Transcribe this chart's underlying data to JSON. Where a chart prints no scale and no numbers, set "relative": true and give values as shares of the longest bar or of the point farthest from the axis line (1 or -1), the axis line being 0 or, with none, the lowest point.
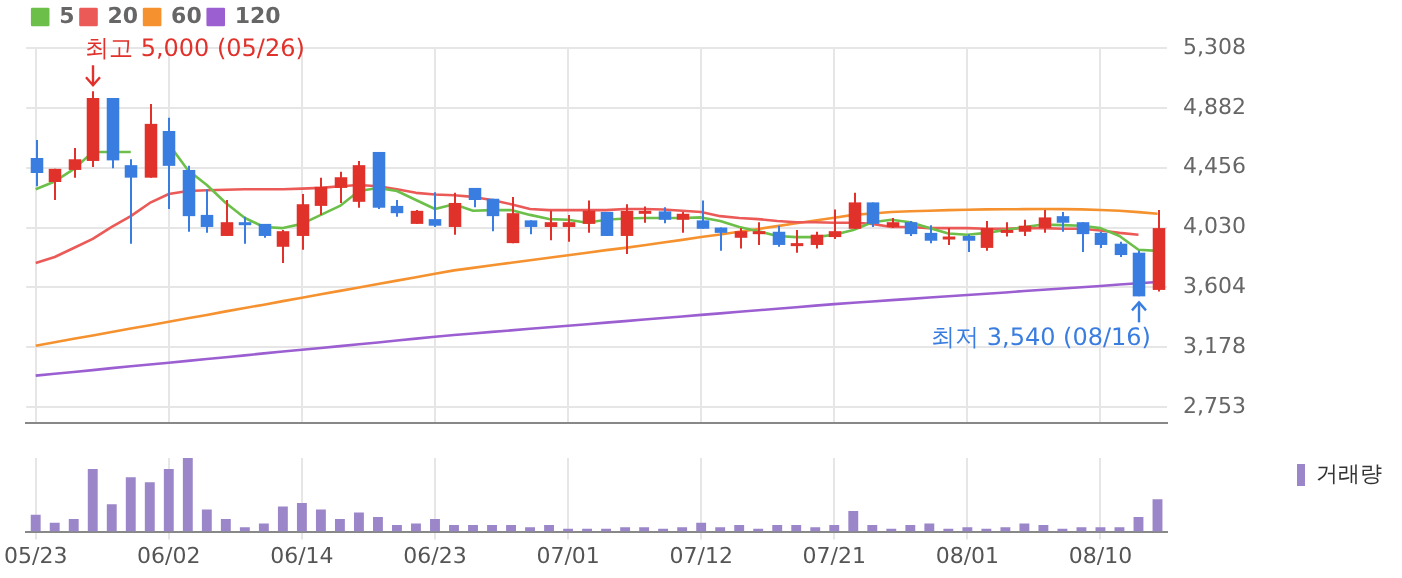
{
  "chart_data": [
    {
      "type": "candlestick",
      "categories": [
        null,
        null,
        null,
        null,
        null,
        null,
        null,
        null,
        null,
        null,
        null,
        null,
        null,
        null,
        null,
        null,
        null,
        null,
        null,
        null,
        null,
        null,
        null,
        null,
        null,
        null,
        null,
        null,
        null,
        null,
        null,
        null,
        null,
        null,
        null,
        null,
        null,
        null,
        null,
        null,
        null,
        null,
        null,
        null,
        null,
        null,
        null,
        null,
        null,
        null,
        null,
        null,
        null,
        null,
        null,
        null,
        null,
        null,
        null,
        null
      ],
      "ohlc": [
        [
          4525,
          4653,
          4324,
          4418
        ],
        [
          4354,
          4448,
          4226,
          4448
        ],
        [
          4440,
          4597,
          4385,
          4516
        ],
        [
          4504,
          5000,
          4461,
          4952
        ],
        [
          4952,
          4952,
          4452,
          4508
        ],
        [
          4474,
          4516,
          3915,
          4385
        ],
        [
          4385,
          4909,
          4385,
          4768
        ],
        [
          4717,
          4811,
          4162,
          4469
        ],
        [
          4440,
          4469,
          4000,
          4111
        ],
        [
          4120,
          4303,
          3992,
          4034
        ],
        [
          3970,
          4226,
          3970,
          4068
        ],
        [
          4068,
          4107,
          3915,
          4047
        ],
        [
          4056,
          4056,
          3957,
          3970
        ],
        [
          3893,
          4013,
          3778,
          4004
        ],
        [
          3970,
          4269,
          3872,
          4196
        ],
        [
          4184,
          4385,
          4120,
          4320
        ],
        [
          4312,
          4427,
          4205,
          4388
        ],
        [
          4213,
          4504,
          4171,
          4474
        ],
        [
          4568,
          4568,
          4162,
          4171
        ],
        [
          4184,
          4226,
          4107,
          4132
        ],
        [
          4056,
          4154,
          4056,
          4149
        ],
        [
          4090,
          4282,
          4034,
          4043
        ],
        [
          4034,
          4277,
          3979,
          4205
        ],
        [
          4312,
          4312,
          4175,
          4226
        ],
        [
          4235,
          4235,
          4004,
          4111
        ],
        [
          3919,
          4248,
          3919,
          4132
        ],
        [
          4081,
          4081,
          3983,
          4034
        ],
        [
          4034,
          4149,
          3940,
          4068
        ],
        [
          4034,
          4120,
          3928,
          4068
        ],
        [
          4056,
          4222,
          3992,
          4149
        ],
        [
          4141,
          4141,
          3970,
          3970
        ],
        [
          3970,
          4196,
          3842,
          4149
        ],
        [
          4132,
          4179,
          4064,
          4149
        ],
        [
          4145,
          4175,
          4060,
          4085
        ],
        [
          4085,
          4141,
          3992,
          4128
        ],
        [
          4081,
          4222,
          4021,
          4021
        ],
        [
          4030,
          4030,
          3864,
          3992
        ],
        [
          3957,
          4026,
          3881,
          4004
        ],
        [
          3996,
          4068,
          3906,
          4004
        ],
        [
          4000,
          4043,
          3893,
          3906
        ],
        [
          3915,
          4013,
          3851,
          3919
        ],
        [
          3906,
          4000,
          3881,
          3979
        ],
        [
          3962,
          4158,
          3949,
          4004
        ],
        [
          4021,
          4277,
          4021,
          4209
        ],
        [
          4209,
          4209,
          4034,
          4056
        ],
        [
          4034,
          4098,
          4026,
          4068
        ],
        [
          4068,
          4077,
          3970,
          3983
        ],
        [
          3992,
          4047,
          3919,
          3936
        ],
        [
          3953,
          4026,
          3906,
          3966
        ],
        [
          3970,
          3983,
          3855,
          3936
        ],
        [
          3885,
          4077,
          3864,
          4026
        ],
        [
          4004,
          4068,
          3966,
          4013
        ],
        [
          4000,
          4085,
          3970,
          4043
        ],
        [
          4026,
          4154,
          3992,
          4102
        ],
        [
          4111,
          4141,
          4000,
          4064
        ],
        [
          4068,
          4068,
          3855,
          3983
        ],
        [
          3992,
          4000,
          3885,
          3906
        ],
        [
          3915,
          3928,
          3821,
          3834
        ],
        [
          3851,
          3864,
          3540,
          3540
        ],
        [
          3586,
          4154,
          3574,
          4026
        ]
      ],
      "colors": [
        "#3a7de0",
        "#e0312b",
        "#e0312b",
        "#e0312b",
        "#3a7de0",
        "#3a7de0",
        "#e0312b",
        "#3a7de0",
        "#3a7de0",
        "#3a7de0",
        "#e0312b",
        "#3a7de0",
        "#3a7de0",
        "#e0312b",
        "#e0312b",
        "#e0312b",
        "#e0312b",
        "#e0312b",
        "#3a7de0",
        "#3a7de0",
        "#e0312b",
        "#3a7de0",
        "#e0312b",
        "#3a7de0",
        "#3a7de0",
        "#e0312b",
        "#3a7de0",
        "#e0312b",
        "#e0312b",
        "#e0312b",
        "#3a7de0",
        "#e0312b",
        "#e0312b",
        "#3a7de0",
        "#e0312b",
        "#3a7de0",
        "#3a7de0",
        "#e0312b",
        "#e0312b",
        "#3a7de0",
        "#e0312b",
        "#e0312b",
        "#e0312b",
        "#e0312b",
        "#3a7de0",
        "#e0312b",
        "#3a7de0",
        "#3a7de0",
        "#e0312b",
        "#3a7de0",
        "#e0312b",
        "#e0312b",
        "#e0312b",
        "#e0312b",
        "#3a7de0",
        "#3a7de0",
        "#3a7de0",
        "#3a7de0",
        "#3a7de0",
        "#e0312b"
      ],
      "series": [
        {
          "name": "5",
          "type": "line",
          "color": "#6cc04a",
          "values": [
            4303,
            4358,
            4446,
            4568,
            4568,
            4568,
            null,
            4623,
            4440,
            4333,
            4205,
            4098,
            4034,
            4026,
            4056,
            4120,
            4184,
            4290,
            4312,
            4290,
            4226,
            4162,
            4196,
            4149,
            4154,
            4154,
            4120,
            4090,
            4085,
            4064,
            4085,
            4094,
            4098,
            4098,
            4098,
            4102,
            4077,
            4034,
            4004,
            3970,
            3962,
            3962,
            3979,
            4013,
            4068,
            4085,
            4068,
            4026,
            3987,
            3979,
            3992,
            4013,
            4034,
            4051,
            4047,
            4043,
            4026,
            3970,
            3872,
            3864
          ]
        },
        {
          "name": "20",
          "type": "line",
          "color": "#eb5a57",
          "values": [
            3778,
            3820,
            3884,
            3949,
            4034,
            4111,
            4205,
            4269,
            4290,
            4295,
            4299,
            4303,
            4303,
            4303,
            4307,
            4312,
            4324,
            4333,
            4324,
            4303,
            4277,
            4265,
            4260,
            4248,
            4226,
            4196,
            4162,
            4154,
            4154,
            4154,
            4154,
            4162,
            4162,
            4158,
            4149,
            4141,
            4111,
            4098,
            4090,
            4077,
            4068,
            4068,
            4064,
            4064,
            4056,
            4034,
            4034,
            4026,
            4026,
            4026,
            4021,
            4021,
            4026,
            4026,
            4021,
            4021,
            4009,
            3992,
            3979,
            null
          ]
        },
        {
          "name": "60",
          "type": "line",
          "color": "#f5922f",
          "values": [
            3189,
            3213,
            3238,
            3262,
            3286,
            3311,
            3335,
            3360,
            3384,
            3408,
            3433,
            3457,
            3481,
            3506,
            3530,
            3555,
            3579,
            3603,
            3628,
            3652,
            3676,
            3701,
            3725,
            3743,
            3761,
            3779,
            3797,
            3815,
            3833,
            3851,
            3869,
            3885,
            3904,
            3923,
            3942,
            3962,
            3981,
            4000,
            4020,
            4040,
            4060,
            4080,
            4100,
            4120,
            4130,
            4141,
            4146,
            4150,
            4154,
            4157,
            4159,
            4160,
            4161,
            4162,
            4161,
            4159,
            4155,
            4149,
            4140,
            4128
          ]
        },
        {
          "name": "120",
          "type": "line",
          "color": "#9c5fd1",
          "values": [
            2976,
            2989,
            3002,
            3015,
            3029,
            3042,
            3055,
            3068,
            3081,
            3094,
            3107,
            3120,
            3134,
            3147,
            3160,
            3173,
            3186,
            3199,
            3212,
            3226,
            3239,
            3252,
            3265,
            3276,
            3287,
            3298,
            3309,
            3320,
            3331,
            3342,
            3353,
            3364,
            3375,
            3386,
            3397,
            3408,
            3419,
            3430,
            3441,
            3452,
            3463,
            3474,
            3485,
            3495,
            3504,
            3513,
            3522,
            3532,
            3541,
            3550,
            3559,
            3568,
            3578,
            3587,
            3596,
            3605,
            3614,
            3624,
            3633,
            3642
          ]
        }
      ],
      "ylim": [
        2640,
        5308
      ],
      "yticks": [
        {
          "value": 2753,
          "label": "2,753"
        },
        {
          "value": 3178,
          "label": "3,178"
        },
        {
          "value": 3604,
          "label": "3,604"
        },
        {
          "value": 4030,
          "label": "4,030"
        },
        {
          "value": 4456,
          "label": "4,456"
        },
        {
          "value": 4882,
          "label": "4,882"
        },
        {
          "value": 5308,
          "label": "5,308"
        }
      ],
      "annotations": [
        "최고 5,000 (05/26)",
        "최저 3,540 (08/16)"
      ],
      "grid": true,
      "legend": "top left",
      "tick_labels": "y"
    },
    {
      "type": "bar",
      "relative": true,
      "categories": [
        "05/23",
        null,
        null,
        null,
        null,
        null,
        null,
        "06/02",
        null,
        null,
        null,
        null,
        null,
        null,
        "06/14",
        null,
        null,
        null,
        null,
        null,
        null,
        "06/23",
        null,
        null,
        null,
        null,
        null,
        null,
        "07/01",
        null,
        null,
        null,
        null,
        null,
        null,
        "07/12",
        null,
        null,
        null,
        null,
        null,
        null,
        "07/21",
        null,
        null,
        null,
        null,
        null,
        null,
        "08/01",
        null,
        null,
        null,
        null,
        null,
        null,
        "08/10",
        null,
        null,
        null
      ],
      "series": [
        {
          "name": "거래량",
          "color": "#9a86c9",
          "values": [
            0.23,
            0.12,
            0.17,
            0.85,
            0.37,
            0.74,
            0.67,
            0.85,
            1,
            0.3,
            0.17,
            0.06,
            0.11,
            0.34,
            0.39,
            0.3,
            0.17,
            0.26,
            0.2,
            0.09,
            0.11,
            0.17,
            0.09,
            0.09,
            0.09,
            0.09,
            0.06,
            0.09,
            0.04,
            0.04,
            0.04,
            0.06,
            0.06,
            0.04,
            0.06,
            0.12,
            0.06,
            0.09,
            0.04,
            0.09,
            0.09,
            0.06,
            0.09,
            0.28,
            0.09,
            0.04,
            0.09,
            0.11,
            0.04,
            0.06,
            0.04,
            0.06,
            0.11,
            0.09,
            0.04,
            0.06,
            0.06,
            0.06,
            0.2,
            0.44
          ]
        }
      ],
      "grid": "x",
      "legend": "right"
    }
  ]
}
